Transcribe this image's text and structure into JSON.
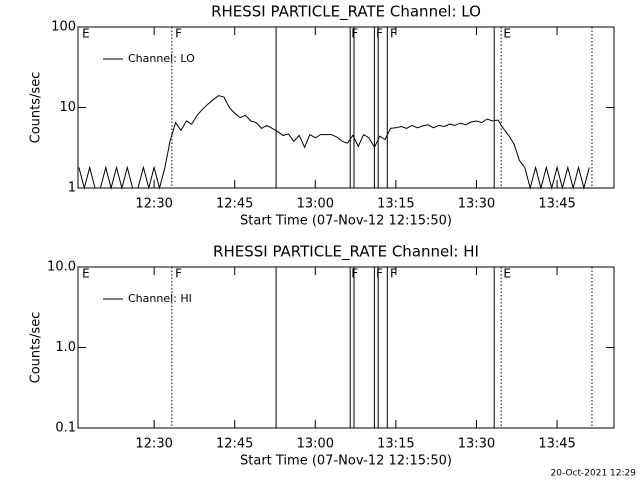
{
  "chart_data": [
    {
      "type": "line",
      "title": "RHESSI PARTICLE_RATE Channel: LO",
      "xlabel": "Start Time (07-Nov-12 12:15:50)",
      "ylabel": "Counts/sec",
      "log_y": true,
      "legend": "upper left",
      "xlim": [
        735.83,
        835.6
      ],
      "xticks": [
        {
          "value": 750,
          "label": "12:30"
        },
        {
          "value": 765,
          "label": "12:45"
        },
        {
          "value": 780,
          "label": "13:00"
        },
        {
          "value": 795,
          "label": "13:15"
        },
        {
          "value": 810,
          "label": "13:30"
        },
        {
          "value": 825,
          "label": "13:45"
        }
      ],
      "ylim": [
        1,
        100
      ],
      "yticks": [
        1,
        10,
        100
      ],
      "x": [
        736,
        737,
        738,
        739,
        740,
        741,
        742,
        743,
        744,
        745,
        746,
        747,
        748,
        749,
        750,
        751,
        752,
        753,
        754,
        755,
        756,
        757,
        758,
        759,
        760,
        761,
        762,
        763,
        764,
        765,
        766,
        767,
        768,
        769,
        770,
        771,
        772,
        773,
        774,
        775,
        776,
        777,
        778,
        779,
        780,
        781,
        782,
        783,
        784,
        785,
        786,
        787,
        788,
        789,
        790,
        791,
        792,
        793,
        794,
        795,
        796,
        797,
        798,
        799,
        800,
        801,
        802,
        803,
        804,
        805,
        806,
        807,
        808,
        809,
        810,
        811,
        812,
        813,
        814,
        815,
        816,
        817,
        818,
        819,
        820,
        821,
        822,
        823,
        824,
        825,
        826,
        827,
        828,
        829,
        830,
        831
      ],
      "series": [
        {
          "name": "Channel: LO",
          "color": "#000000",
          "values": [
            1.8,
            1,
            1.8,
            1,
            1,
            1.8,
            1,
            1.8,
            1,
            1.8,
            1,
            1,
            1.8,
            1,
            1.8,
            1,
            1.8,
            3.9,
            6.5,
            5.2,
            6.8,
            6.2,
            8,
            9.5,
            11,
            12.5,
            14,
            13.5,
            10,
            8.5,
            7.5,
            8,
            6.8,
            6.5,
            5.5,
            6,
            5.5,
            5,
            4.5,
            4.7,
            3.8,
            4.5,
            3.2,
            4.6,
            4.2,
            4.6,
            4.6,
            4.6,
            4.3,
            3.8,
            3.6,
            4.5,
            3.3,
            4.6,
            4.2,
            3.2,
            4.4,
            4,
            5.5,
            5.6,
            5.8,
            5.5,
            6,
            5.6,
            5.9,
            6.1,
            5.6,
            6,
            5.8,
            6.2,
            6,
            6.4,
            6.1,
            6.6,
            6.8,
            6.5,
            7.2,
            6.8,
            7,
            5.5,
            4.5,
            3.5,
            2.2,
            1.8,
            1,
            1.8,
            1,
            1.8,
            1,
            1.8,
            1,
            1.8,
            1,
            1.8,
            1,
            1.8
          ]
        }
      ],
      "vlines": [
        {
          "x": 753.3,
          "style": "dotted"
        },
        {
          "x": 772.7,
          "style": "solid"
        },
        {
          "x": 786.5,
          "style": "solid"
        },
        {
          "x": 787.2,
          "style": "solid"
        },
        {
          "x": 791.0,
          "style": "solid"
        },
        {
          "x": 791.7,
          "style": "solid"
        },
        {
          "x": 793.4,
          "style": "solid"
        },
        {
          "x": 813.3,
          "style": "solid"
        },
        {
          "x": 814.6,
          "style": "dotted"
        },
        {
          "x": 831.5,
          "style": "dotted"
        }
      ],
      "flags": [
        {
          "x": 736.6,
          "text": "E"
        },
        {
          "x": 753.9,
          "text": "F"
        },
        {
          "x": 786.7,
          "text": "F"
        },
        {
          "x": 791.3,
          "text": "F"
        },
        {
          "x": 793.9,
          "text": "F"
        },
        {
          "x": 815.0,
          "text": "E"
        }
      ]
    },
    {
      "type": "line",
      "title": "RHESSI PARTICLE_RATE Channel: HI",
      "xlabel": "Start Time (07-Nov-12 12:15:50)",
      "ylabel": "Counts/sec",
      "log_y": true,
      "legend": "upper left",
      "xlim": [
        735.83,
        835.6
      ],
      "xticks": [
        {
          "value": 750,
          "label": "12:30"
        },
        {
          "value": 765,
          "label": "12:45"
        },
        {
          "value": 780,
          "label": "13:00"
        },
        {
          "value": 795,
          "label": "13:15"
        },
        {
          "value": 810,
          "label": "13:30"
        },
        {
          "value": 825,
          "label": "13:45"
        }
      ],
      "ylim": [
        0.1,
        10
      ],
      "yticks": [
        0.1,
        {
          "value": 1,
          "label": "1.0"
        },
        {
          "value": 10,
          "label": "10.0"
        }
      ],
      "x": [],
      "series": [
        {
          "name": "Channel: HI",
          "color": "#000000",
          "values": []
        }
      ],
      "vlines": [
        {
          "x": 753.3,
          "style": "dotted"
        },
        {
          "x": 772.7,
          "style": "solid"
        },
        {
          "x": 786.5,
          "style": "solid"
        },
        {
          "x": 787.2,
          "style": "solid"
        },
        {
          "x": 791.0,
          "style": "solid"
        },
        {
          "x": 791.7,
          "style": "solid"
        },
        {
          "x": 793.4,
          "style": "solid"
        },
        {
          "x": 813.3,
          "style": "solid"
        },
        {
          "x": 814.6,
          "style": "dotted"
        },
        {
          "x": 831.5,
          "style": "dotted"
        }
      ],
      "flags": [
        {
          "x": 736.6,
          "text": "E"
        },
        {
          "x": 753.9,
          "text": "F"
        },
        {
          "x": 786.7,
          "text": "F"
        },
        {
          "x": 791.3,
          "text": "F"
        },
        {
          "x": 793.9,
          "text": "F"
        },
        {
          "x": 815.0,
          "text": "E"
        }
      ]
    }
  ],
  "footer": "20-Oct-2021 12:29"
}
